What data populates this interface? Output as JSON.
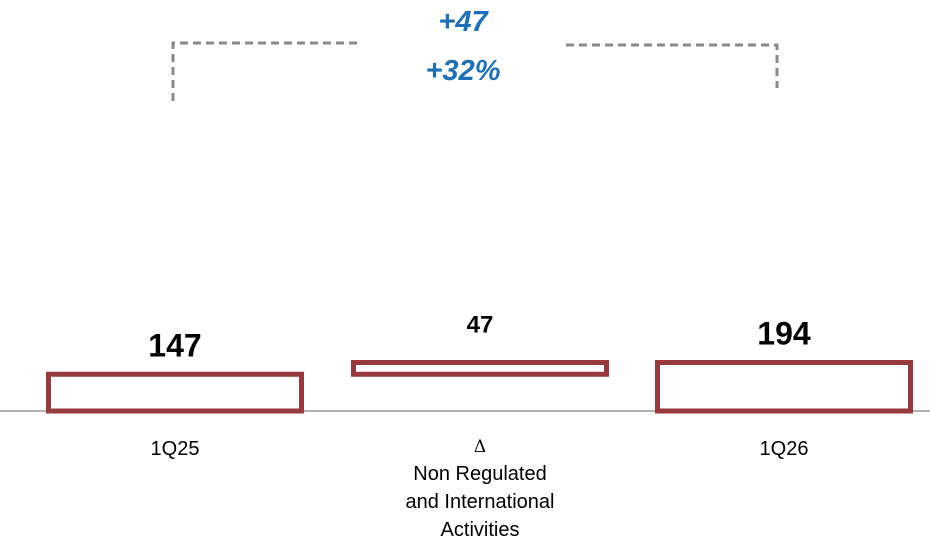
{
  "chart_data": {
    "type": "bar",
    "categories": [
      "1Q25",
      "Δ\nNon Regulated\nand International\nActivities",
      "1Q26"
    ],
    "bars": [
      {
        "category": "1Q25",
        "value": 147,
        "base": 0,
        "label": "147"
      },
      {
        "category": "Δ Non Regulated and International Activities",
        "value": 47,
        "base": 147,
        "label": "47"
      },
      {
        "category": "1Q26",
        "value": 194,
        "base": 0,
        "label": "194"
      }
    ],
    "title": "",
    "xlabel": "",
    "ylabel": "",
    "bar_outline_color": "#963a40",
    "bar_fill_color": "#ffffff",
    "annotation": {
      "absolute_change": "+47",
      "percent_change": "+32%",
      "color": "#1f6fb8",
      "connects": [
        "1Q25",
        "1Q26"
      ]
    },
    "labels": {
      "bar1_value": "147",
      "bar2_value": "47",
      "bar3_value": "194",
      "cat1": "1Q25",
      "cat2_symbol": "Δ",
      "cat2_line1": "Non Regulated",
      "cat2_line2": "and International",
      "cat2_line3": "Activities",
      "cat3": "1Q26"
    }
  }
}
